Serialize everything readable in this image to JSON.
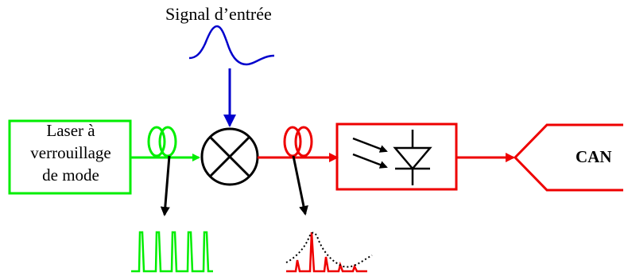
{
  "diagram": {
    "input_signal_title": "Signal d’entrée",
    "laser_label_lines": [
      "Laser à",
      "verrouillage",
      "de mode"
    ],
    "adc_label": "CAN"
  },
  "colors": {
    "laser_and_pulses": "#00ee00",
    "modulated_path": "#ee0000",
    "input_signal": "#0000cc",
    "outline": "#000000"
  },
  "icons": {
    "mixer": "circle-cross-multiplier-icon",
    "fiber_coupler": "fiber-loop-icon",
    "photodiode": "photodiode-icon"
  }
}
